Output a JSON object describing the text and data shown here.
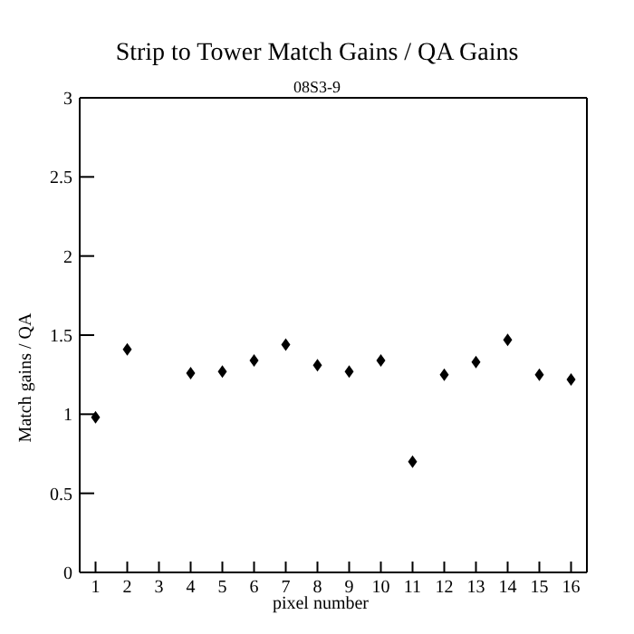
{
  "chart_data": {
    "type": "scatter",
    "title": "Strip to Tower Match Gains / QA Gains",
    "subtitle": "08S3-9",
    "xlabel": "pixel number",
    "ylabel": "Match gains / QA",
    "x": [
      1,
      2,
      4,
      5,
      6,
      7,
      8,
      9,
      10,
      11,
      12,
      13,
      14,
      15,
      16
    ],
    "values": [
      0.98,
      1.41,
      1.26,
      1.27,
      1.34,
      1.44,
      1.31,
      1.27,
      1.34,
      0.7,
      1.25,
      1.33,
      1.47,
      1.25,
      1.22
    ],
    "errors": [
      null,
      null,
      null,
      null,
      null,
      0.02,
      null,
      null,
      0.02,
      null,
      0.02,
      null,
      null,
      null,
      0.02
    ],
    "color": "#000000",
    "marker": "diamond",
    "xlim": [
      0.5,
      16.5
    ],
    "xticks": [
      1,
      2,
      3,
      4,
      5,
      6,
      7,
      8,
      9,
      10,
      11,
      12,
      13,
      14,
      15,
      16
    ],
    "ylim": [
      0,
      3
    ],
    "yticks": [
      0,
      0.5,
      1,
      1.5,
      2,
      2.5,
      3
    ]
  }
}
